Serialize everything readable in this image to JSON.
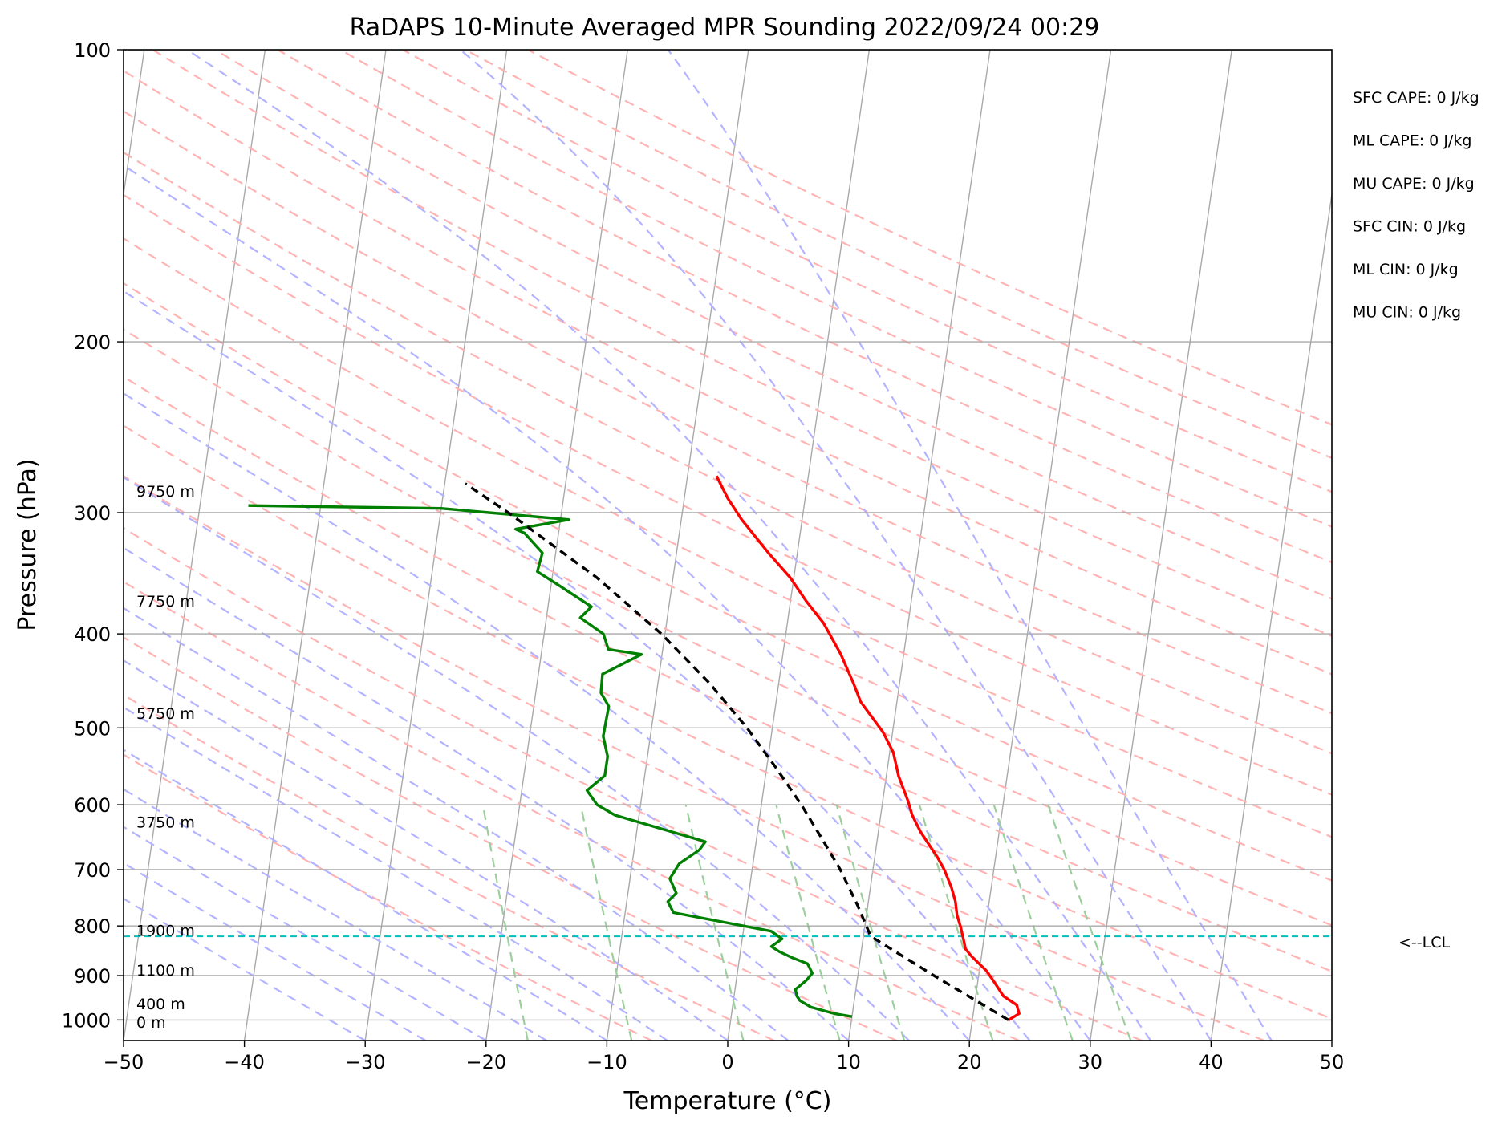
{
  "chart_data": {
    "type": "skew-t",
    "title": "RaDAPS 10-Minute Averaged MPR Sounding 2022/09/24 00:29",
    "xlabel": "Temperature (°C)",
    "ylabel": "Pressure (hPa)",
    "xlim": [
      -50,
      50
    ],
    "ylim": [
      1050,
      100
    ],
    "y_scale": "log",
    "grid": true,
    "x_ticks": [
      -50,
      -40,
      -30,
      -20,
      -10,
      0,
      10,
      20,
      30,
      40,
      50
    ],
    "x_tick_labels": [
      "−50",
      "−40",
      "−30",
      "−20",
      "−10",
      "0",
      "10",
      "20",
      "30",
      "40",
      "50"
    ],
    "y_ticks": [
      100,
      200,
      300,
      400,
      500,
      600,
      700,
      800,
      900,
      1000
    ],
    "y_tick_labels": [
      "100",
      "200",
      "300",
      "400",
      "500",
      "600",
      "700",
      "800",
      "900",
      "1000"
    ],
    "series": [
      {
        "color": "#ff0000",
        "points": [
          [
            1000,
            23.0
          ],
          [
            985,
            23.8
          ],
          [
            965,
            23.5
          ],
          [
            945,
            22.3
          ],
          [
            915,
            21.4
          ],
          [
            890,
            20.6
          ],
          [
            860,
            19.2
          ],
          [
            845,
            18.6
          ],
          [
            825,
            18.3
          ],
          [
            800,
            17.9
          ],
          [
            780,
            17.5
          ],
          [
            755,
            17.2
          ],
          [
            730,
            16.7
          ],
          [
            700,
            15.9
          ],
          [
            680,
            15.2
          ],
          [
            640,
            13.5
          ],
          [
            615,
            12.6
          ],
          [
            595,
            12.1
          ],
          [
            560,
            11.0
          ],
          [
            530,
            10.3
          ],
          [
            505,
            9.2
          ],
          [
            470,
            7.0
          ],
          [
            450,
            6.2
          ],
          [
            420,
            4.8
          ],
          [
            390,
            3.0
          ],
          [
            370,
            1.3
          ],
          [
            350,
            -0.3
          ],
          [
            330,
            -2.4
          ],
          [
            305,
            -5.0
          ],
          [
            290,
            -6.4
          ],
          [
            275,
            -7.6
          ]
        ]
      },
      {
        "color": "#008000",
        "points": [
          [
            992,
            10.0
          ],
          [
            985,
            8.5
          ],
          [
            970,
            6.5
          ],
          [
            955,
            5.5
          ],
          [
            945,
            5.2
          ],
          [
            930,
            5.0
          ],
          [
            910,
            5.8
          ],
          [
            895,
            6.2
          ],
          [
            875,
            5.7
          ],
          [
            862,
            4.3
          ],
          [
            850,
            3.2
          ],
          [
            840,
            2.5
          ],
          [
            825,
            3.3
          ],
          [
            810,
            2.3
          ],
          [
            775,
            -6.0
          ],
          [
            755,
            -6.6
          ],
          [
            740,
            -6.0
          ],
          [
            715,
            -6.7
          ],
          [
            690,
            -6.1
          ],
          [
            668,
            -4.6
          ],
          [
            655,
            -4.2
          ],
          [
            615,
            -12.0
          ],
          [
            600,
            -13.6
          ],
          [
            580,
            -14.6
          ],
          [
            560,
            -13.3
          ],
          [
            535,
            -13.3
          ],
          [
            510,
            -13.9
          ],
          [
            475,
            -13.8
          ],
          [
            460,
            -14.6
          ],
          [
            440,
            -14.7
          ],
          [
            420,
            -11.7
          ],
          [
            415,
            -14.5
          ],
          [
            400,
            -15.1
          ],
          [
            385,
            -17.2
          ],
          [
            375,
            -16.4
          ],
          [
            355,
            -19.6
          ],
          [
            345,
            -21.3
          ],
          [
            330,
            -21.1
          ],
          [
            315,
            -22.8
          ],
          [
            312,
            -23.6
          ],
          [
            305,
            -19.3
          ],
          [
            300,
            -26.0
          ],
          [
            297,
            -30.0
          ],
          [
            295,
            -46.0
          ]
        ]
      },
      {
        "color": "#000000",
        "dashed": true,
        "points": [
          [
            1000,
            23.0
          ],
          [
            900,
            16.3
          ],
          [
            820,
            10.6
          ],
          [
            760,
            9.1
          ],
          [
            700,
            7.3
          ],
          [
            650,
            5.4
          ],
          [
            600,
            3.3
          ],
          [
            550,
            0.8
          ],
          [
            500,
            -2.1
          ],
          [
            450,
            -5.7
          ],
          [
            400,
            -10.3
          ],
          [
            350,
            -16.3
          ],
          [
            300,
            -24.4
          ],
          [
            280,
            -28.3
          ]
        ]
      }
    ],
    "lcl_pressure": 820,
    "lcl_label": "<--LCL",
    "height_labels": [
      {
        "text": "9750 m",
        "p": 285
      },
      {
        "text": "7750 m",
        "p": 370
      },
      {
        "text": "5750 m",
        "p": 483
      },
      {
        "text": "3750 m",
        "p": 625
      },
      {
        "text": "1900 m",
        "p": 808
      },
      {
        "text": "1100 m",
        "p": 888
      },
      {
        "text": "400 m",
        "p": 962
      },
      {
        "text": "0 m",
        "p": 1005
      }
    ],
    "indices": [
      "SFC CAPE: 0 J/kg",
      "ML CAPE: 0 J/kg",
      "MU CAPE: 0 J/kg",
      "SFC CIN: 0 J/kg",
      "ML CIN: 0 J/kg",
      "MU CIN: 0 J/kg"
    ],
    "colors": {
      "temperature": "#ff0000",
      "dewpoint": "#008000",
      "parcel": "#000000",
      "dry_adiabats": "#ffb3b3",
      "moist_adiabats": "#b3b3ff",
      "mixing_ratio": "#9ccf9c",
      "isotherms": "#a9a9a9",
      "lcl_line": "#00bfbf"
    }
  }
}
